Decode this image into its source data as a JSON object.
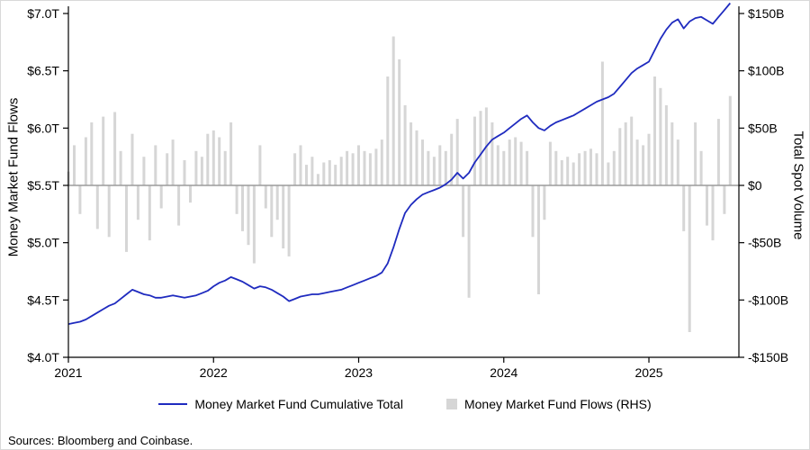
{
  "footer": {
    "sources": "Sources: Bloomberg and Coinbase."
  },
  "chart_data": {
    "type": "combo",
    "title": "",
    "grid": false,
    "legend_position": "bottom",
    "left_axis": {
      "label": "Money Market Fund Flows",
      "min": 4.0,
      "max": 7.0,
      "tick_values": [
        7.0,
        6.5,
        6.0,
        5.5,
        5.0,
        4.5,
        4.0
      ],
      "ticks": [
        "$7.0T",
        "$6.5T",
        "$6.0T",
        "$5.5T",
        "$5.0T",
        "$4.5T",
        "$4.0T"
      ]
    },
    "right_axis": {
      "label": "Total Spot Volume",
      "min": -150,
      "max": 150,
      "tick_values": [
        150,
        100,
        50,
        0,
        -50,
        -100,
        -150
      ],
      "ticks": [
        "$150B",
        "$100B",
        "$50B",
        "$0",
        "-$50B",
        "-$100B",
        "-$150B"
      ]
    },
    "x_axis": {
      "min": 2021.0,
      "max": 2025.62,
      "tick_values": [
        2021,
        2022,
        2023,
        2024,
        2025
      ],
      "ticks": [
        "2021",
        "2022",
        "2023",
        "2024",
        "2025"
      ]
    },
    "colors": {
      "line": "#1f2bbf",
      "bars": "#d6d6d6",
      "zero_line": "#9b9b9b",
      "axis": "#000000"
    },
    "x": [
      2021.0,
      2021.04,
      2021.08,
      2021.12,
      2021.16,
      2021.2,
      2021.24,
      2021.28,
      2021.32,
      2021.36,
      2021.4,
      2021.44,
      2021.48,
      2021.52,
      2021.56,
      2021.6,
      2021.64,
      2021.68,
      2021.72,
      2021.76,
      2021.8,
      2021.84,
      2021.88,
      2021.92,
      2021.96,
      2022.0,
      2022.04,
      2022.08,
      2022.12,
      2022.16,
      2022.2,
      2022.24,
      2022.28,
      2022.32,
      2022.36,
      2022.4,
      2022.44,
      2022.48,
      2022.52,
      2022.56,
      2022.6,
      2022.64,
      2022.68,
      2022.72,
      2022.76,
      2022.8,
      2022.84,
      2022.88,
      2022.92,
      2022.96,
      2023.0,
      2023.04,
      2023.08,
      2023.12,
      2023.16,
      2023.2,
      2023.24,
      2023.28,
      2023.32,
      2023.36,
      2023.4,
      2023.44,
      2023.48,
      2023.52,
      2023.56,
      2023.6,
      2023.64,
      2023.68,
      2023.72,
      2023.76,
      2023.8,
      2023.84,
      2023.88,
      2023.92,
      2023.96,
      2024.0,
      2024.04,
      2024.08,
      2024.12,
      2024.16,
      2024.2,
      2024.24,
      2024.28,
      2024.32,
      2024.36,
      2024.4,
      2024.44,
      2024.48,
      2024.52,
      2024.56,
      2024.6,
      2024.64,
      2024.68,
      2024.72,
      2024.76,
      2024.8,
      2024.84,
      2024.88,
      2024.92,
      2024.96,
      2025.0,
      2025.04,
      2025.08,
      2025.12,
      2025.16,
      2025.2,
      2025.24,
      2025.28,
      2025.32,
      2025.36,
      2025.4,
      2025.44,
      2025.48,
      2025.52,
      2025.56
    ],
    "series": [
      {
        "name": "Money Market Fund Cumulative Total",
        "type": "line",
        "axis": "left",
        "unit": "T",
        "color": "#1f2bbf",
        "values": [
          4.29,
          4.3,
          4.31,
          4.33,
          4.36,
          4.39,
          4.42,
          4.45,
          4.47,
          4.51,
          4.55,
          4.59,
          4.57,
          4.55,
          4.54,
          4.52,
          4.52,
          4.53,
          4.54,
          4.53,
          4.52,
          4.53,
          4.54,
          4.56,
          4.58,
          4.62,
          4.65,
          4.67,
          4.7,
          4.68,
          4.66,
          4.63,
          4.6,
          4.62,
          4.61,
          4.59,
          4.56,
          4.53,
          4.49,
          4.51,
          4.53,
          4.54,
          4.55,
          4.55,
          4.56,
          4.57,
          4.58,
          4.59,
          4.61,
          4.63,
          4.65,
          4.67,
          4.69,
          4.71,
          4.74,
          4.82,
          4.96,
          5.12,
          5.26,
          5.33,
          5.38,
          5.42,
          5.44,
          5.46,
          5.48,
          5.51,
          5.55,
          5.61,
          5.56,
          5.61,
          5.7,
          5.77,
          5.84,
          5.9,
          5.93,
          5.96,
          6.0,
          6.04,
          6.08,
          6.11,
          6.05,
          6.0,
          5.98,
          6.02,
          6.05,
          6.07,
          6.09,
          6.11,
          6.14,
          6.17,
          6.2,
          6.23,
          6.25,
          6.27,
          6.3,
          6.36,
          6.42,
          6.48,
          6.52,
          6.55,
          6.58,
          6.68,
          6.78,
          6.86,
          6.92,
          6.95,
          6.87,
          6.93,
          6.96,
          6.97,
          6.94,
          6.91,
          6.97,
          7.03,
          7.09
        ]
      },
      {
        "name": "Money Market Fund Flows (RHS)",
        "type": "bar",
        "axis": "right",
        "unit": "B",
        "color": "#d6d6d6",
        "values": [
          12,
          35,
          -25,
          42,
          55,
          -38,
          60,
          -45,
          64,
          30,
          -58,
          45,
          -30,
          25,
          -48,
          35,
          -20,
          28,
          40,
          -35,
          22,
          -15,
          30,
          25,
          45,
          48,
          42,
          30,
          55,
          -25,
          -40,
          -52,
          -68,
          35,
          -20,
          -45,
          -30,
          -55,
          -62,
          28,
          35,
          18,
          25,
          10,
          20,
          22,
          18,
          25,
          30,
          28,
          35,
          30,
          28,
          32,
          40,
          95,
          130,
          110,
          70,
          55,
          48,
          40,
          30,
          25,
          35,
          30,
          45,
          58,
          -45,
          -98,
          60,
          65,
          68,
          55,
          35,
          30,
          40,
          42,
          38,
          30,
          -45,
          -95,
          -30,
          38,
          30,
          22,
          25,
          20,
          28,
          30,
          32,
          28,
          108,
          20,
          30,
          50,
          55,
          60,
          40,
          35,
          45,
          95,
          85,
          70,
          55,
          40,
          -40,
          -128,
          55,
          30,
          -35,
          -48,
          58,
          -25,
          78
        ]
      }
    ]
  }
}
